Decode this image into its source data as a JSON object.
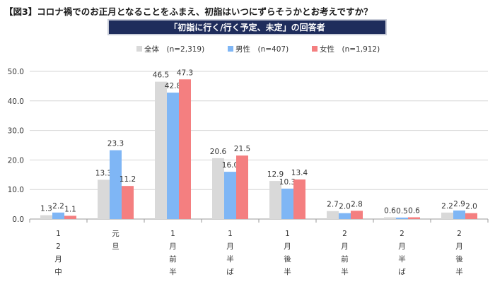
{
  "header": {
    "figure_title": "【図3】コロナ禍でのお正月となることをふまえ、初詣はいつにずらそうかとお考えですか？",
    "banner": "「初詣に行く/行く予定、未定」の回答者"
  },
  "chart_data": {
    "type": "bar",
    "categories": [
      "12月中",
      "元旦",
      "1月前半",
      "1月半ば",
      "1月後半",
      "2月前半",
      "2月半ば",
      "2月後半"
    ],
    "series": [
      {
        "name": "全体",
        "n_label": "(n=2,319)",
        "color": "#d9d9d9",
        "values": [
          1.3,
          13.3,
          46.5,
          20.6,
          12.9,
          2.7,
          0.6,
          2.2
        ]
      },
      {
        "name": "男性",
        "n_label": "(n=407)",
        "color": "#7fb6f5",
        "values": [
          2.2,
          23.3,
          42.8,
          16.0,
          10.3,
          2.0,
          0.5,
          2.9
        ]
      },
      {
        "name": "女性",
        "n_label": "(n=1,912)",
        "color": "#f47f80",
        "values": [
          1.1,
          11.2,
          47.3,
          21.5,
          13.4,
          2.8,
          0.6,
          2.0
        ]
      }
    ],
    "ylim": [
      0,
      50
    ],
    "yticks": [
      "0.0",
      "10.0",
      "20.0",
      "30.0",
      "40.0",
      "50.0"
    ],
    "grid": true,
    "legend_position": "top"
  }
}
